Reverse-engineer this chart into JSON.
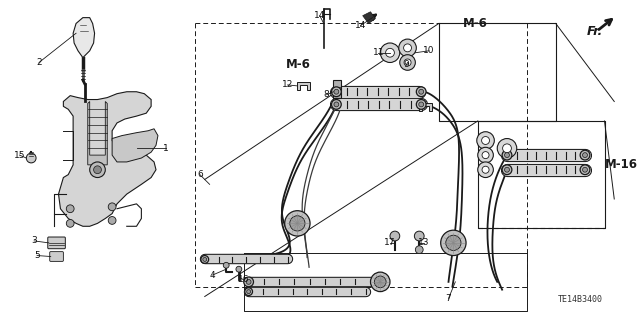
{
  "part_number": "TE14B3400",
  "bg_color": "#ffffff",
  "fig_width": 6.4,
  "fig_height": 3.19,
  "dpi": 100,
  "line_color": "#1a1a1a",
  "label_fontsize": 6.5,
  "annot_fontsize": 8.5
}
